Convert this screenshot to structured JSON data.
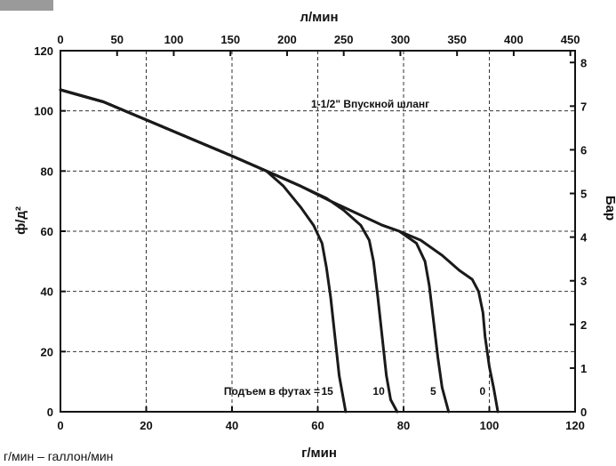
{
  "chart_data": {
    "type": "line",
    "title": "",
    "xlabel": "г/мин",
    "ylabel": "ф/д²",
    "x2label": "л/мин",
    "y2label": "Бар",
    "xlim": [
      0,
      120
    ],
    "ylim": [
      0,
      120
    ],
    "x2lim": [
      0,
      454.2
    ],
    "y2lim": [
      0,
      8.27
    ],
    "x_ticks": [
      0,
      20,
      40,
      60,
      80,
      100,
      120
    ],
    "y_ticks": [
      0,
      20,
      40,
      60,
      80,
      100,
      120
    ],
    "x2_ticks": [
      0,
      50,
      100,
      150,
      200,
      250,
      300,
      350,
      400,
      450
    ],
    "y2_ticks": [
      0,
      1,
      2,
      3,
      4,
      5,
      6,
      7,
      8
    ],
    "grid": true,
    "annotations": {
      "hose": "1-1/2\" Впускной шланг",
      "lift_prefix": "Подъем в футах = ",
      "footnote": "г/мин – галлон/мин"
    },
    "series": [
      {
        "label": "15",
        "x": [
          0,
          10,
          20,
          30,
          40,
          48,
          52,
          56,
          59,
          61,
          62,
          63,
          64,
          65,
          66.5
        ],
        "y": [
          107,
          103,
          97,
          91,
          85,
          80,
          75,
          68,
          62,
          56,
          48,
          38,
          25,
          12,
          0
        ]
      },
      {
        "label": "10",
        "x": [
          0,
          10,
          20,
          30,
          40,
          48,
          56,
          62,
          66,
          70,
          72,
          73,
          74,
          75,
          76,
          77,
          78.5
        ],
        "y": [
          107,
          103,
          97,
          91,
          85,
          80,
          75,
          71,
          67,
          62,
          57,
          50,
          38,
          25,
          12,
          4,
          0
        ]
      },
      {
        "label": "5",
        "x": [
          0,
          10,
          20,
          30,
          40,
          48,
          56,
          63,
          69,
          75,
          79,
          83,
          85,
          86,
          87,
          88,
          89,
          90.5
        ],
        "y": [
          107,
          103,
          97,
          91,
          85,
          80,
          75,
          70,
          66,
          62,
          60,
          56,
          50,
          42,
          30,
          18,
          8,
          0
        ]
      },
      {
        "label": "0",
        "x": [
          0,
          10,
          20,
          30,
          40,
          48,
          56,
          63,
          69,
          75,
          79,
          84,
          89,
          93,
          96,
          97.5,
          98.5,
          99,
          100,
          101,
          102
        ],
        "y": [
          107,
          103,
          97,
          91,
          85,
          80,
          75,
          70,
          66,
          62,
          60,
          57,
          52,
          47,
          44,
          40,
          33,
          25,
          15,
          8,
          0
        ]
      }
    ],
    "colors": {
      "line": "#1a1a1a",
      "grid": "#333333"
    }
  }
}
